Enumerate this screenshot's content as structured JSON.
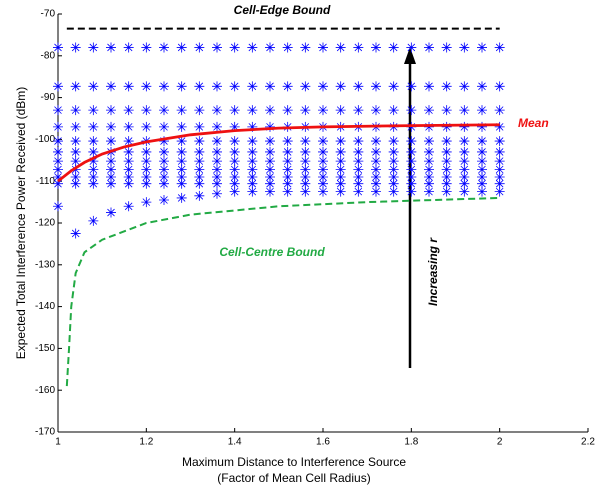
{
  "chart_data": {
    "type": "scatter",
    "xlabel": [
      "Maximum Distance to Interference Source",
      "(Factor of Mean Cell Radius)"
    ],
    "ylabel": "Expected Total Interference Power Received (dBm)",
    "xlim": [
      1,
      2.2
    ],
    "xticks": [
      1,
      1.2,
      1.4,
      1.6,
      1.8,
      2,
      2.2
    ],
    "ylim": [
      -170,
      -70
    ],
    "yticks": [
      -170,
      -160,
      -150,
      -140,
      -130,
      -120,
      -110,
      -100,
      -90,
      -80,
      -70
    ],
    "marker_color": "#0000ff",
    "x": [
      1,
      1.04,
      1.08,
      1.12,
      1.16,
      1.2,
      1.24,
      1.28,
      1.32,
      1.36,
      1.4,
      1.44,
      1.48,
      1.52,
      1.56,
      1.6,
      1.64,
      1.68,
      1.72,
      1.76,
      1.8,
      1.84,
      1.88,
      1.92,
      1.96,
      2
    ],
    "series": [
      {
        "values": [
          -78,
          -78,
          -78,
          -78,
          -78,
          -78,
          -78,
          -78,
          -78,
          -78,
          -78,
          -78,
          -78,
          -78,
          -78,
          -78,
          -78,
          -78,
          -78,
          -78,
          -78,
          -78,
          -78,
          -78,
          -78,
          -78
        ]
      },
      {
        "values": [
          -87.3,
          -87.3,
          -87.3,
          -87.3,
          -87.3,
          -87.3,
          -87.3,
          -87.3,
          -87.3,
          -87.3,
          -87.3,
          -87.3,
          -87.3,
          -87.3,
          -87.3,
          -87.3,
          -87.3,
          -87.3,
          -87.3,
          -87.3,
          -87.3,
          -87.3,
          -87.3,
          -87.3,
          -87.3,
          -87.3
        ]
      },
      {
        "values": [
          -93,
          -93,
          -93,
          -93,
          -93,
          -93,
          -93,
          -93,
          -93,
          -93,
          -93,
          -93,
          -93,
          -93,
          -93,
          -93,
          -93,
          -93,
          -93,
          -93,
          -93,
          -93,
          -93,
          -93,
          -93,
          -93
        ]
      },
      {
        "values": [
          -97,
          -97,
          -97,
          -97,
          -97,
          -97,
          -97,
          -97,
          -97,
          -97,
          -97,
          -97,
          -97,
          -97,
          -97,
          -97,
          -97,
          -97,
          -97,
          -97,
          -97,
          -97,
          -97,
          -97,
          -97,
          -97
        ]
      },
      {
        "values": [
          -100.4,
          -100.4,
          -100.4,
          -100.4,
          -100.4,
          -100.4,
          -100.4,
          -100.4,
          -100.4,
          -100.4,
          -100.4,
          -100.4,
          -100.4,
          -100.4,
          -100.4,
          -100.4,
          -100.4,
          -100.4,
          -100.4,
          -100.4,
          -100.4,
          -100.4,
          -100.4,
          -100.4,
          -100.4,
          -100.4
        ]
      },
      {
        "values": [
          -103,
          -103,
          -103,
          -103,
          -103,
          -103,
          -103,
          -103,
          -103,
          -103,
          -103,
          -103,
          -103,
          -103,
          -103,
          -103,
          -103,
          -103,
          -103,
          -103,
          -103,
          -103,
          -103,
          -103,
          -103,
          -103
        ]
      },
      {
        "values": [
          -105.2,
          -105.2,
          -105.2,
          -105.2,
          -105.2,
          -105.2,
          -105.2,
          -105.2,
          -105.2,
          -105.2,
          -105.2,
          -105.2,
          -105.2,
          -105.2,
          -105.2,
          -105.2,
          -105.2,
          -105.2,
          -105.2,
          -105.2,
          -105.2,
          -105.2,
          -105.2,
          -105.2,
          -105.2,
          -105.2
        ]
      },
      {
        "values": [
          -107.2,
          -107.2,
          -107.2,
          -107.2,
          -107.2,
          -107.2,
          -107.2,
          -107.2,
          -107.2,
          -107.2,
          -107.2,
          -107.2,
          -107.2,
          -107.2,
          -107.2,
          -107.2,
          -107.2,
          -107.2,
          -107.2,
          -107.2,
          -107.2,
          -107.2,
          -107.2,
          -107.2,
          -107.2,
          -107.2
        ]
      },
      {
        "values": [
          -109,
          -109,
          -109,
          -109,
          -109,
          -109,
          -109,
          -109,
          -109,
          -109,
          -109,
          -109,
          -109,
          -109,
          -109,
          -109,
          -109,
          -109,
          -109,
          -109,
          -109,
          -109,
          -109,
          -109,
          -109,
          -109
        ]
      },
      {
        "values": [
          -110.6,
          -110.6,
          -110.6,
          -110.6,
          -110.6,
          -110.6,
          -110.6,
          -110.6,
          -110.6,
          -110.6,
          -110.6,
          -110.6,
          -110.6,
          -110.6,
          -110.6,
          -110.6,
          -110.6,
          -110.6,
          -110.6,
          -110.6,
          -110.6,
          -110.6,
          -110.6,
          -110.6,
          -110.6,
          -110.6
        ]
      },
      {
        "values": [
          -116,
          -122.5,
          -119.5,
          -117.5,
          -116,
          -115,
          -114.5,
          -114,
          -113.5,
          -113,
          -112.5,
          -112.5,
          -112.5,
          -112.5,
          -112.5,
          -112.5,
          -112.5,
          -112.5,
          -112.5,
          -112.5,
          -112.5,
          -112.5,
          -112.5,
          -112.5,
          -112.5,
          -112.5
        ]
      }
    ],
    "lines": [
      {
        "name": "Cell-Edge Bound",
        "color": "#000000",
        "dash": true,
        "x": [
          1.02,
          2
        ],
        "values": [
          -73.5,
          -73.5
        ]
      },
      {
        "name": "Mean",
        "color": "#ee1111",
        "dash": false,
        "x": [
          1,
          1.03,
          1.06,
          1.1,
          1.15,
          1.2,
          1.3,
          1.4,
          1.5,
          1.6,
          1.8,
          2
        ],
        "values": [
          -110,
          -107.5,
          -105.5,
          -103.5,
          -101.8,
          -100.6,
          -98.9,
          -97.9,
          -97.3,
          -97,
          -96.7,
          -96.5
        ]
      },
      {
        "name": "Cell-Centre Bound",
        "color": "#22aa44",
        "dash": true,
        "x": [
          1.02,
          1.025,
          1.03,
          1.04,
          1.06,
          1.1,
          1.2,
          1.3,
          1.5,
          1.7,
          2
        ],
        "values": [
          -159,
          -150,
          -140,
          -132,
          -127,
          -124,
          -120,
          -118,
          -116,
          -115,
          -114
        ]
      }
    ],
    "annotation": "Increasing r"
  }
}
